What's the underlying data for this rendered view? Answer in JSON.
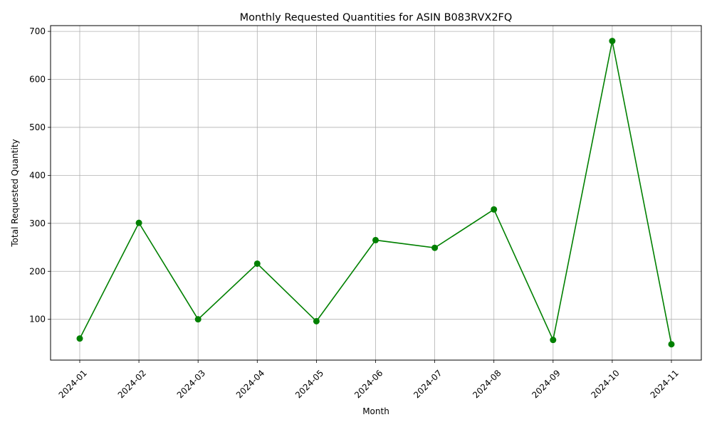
{
  "chart_data": {
    "type": "line",
    "title": "Monthly Requested Quantities for ASIN B083RVX2FQ",
    "xlabel": "Month",
    "ylabel": "Total Requested Quantity",
    "categories": [
      "2024-01",
      "2024-02",
      "2024-03",
      "2024-04",
      "2024-05",
      "2024-06",
      "2024-07",
      "2024-08",
      "2024-09",
      "2024-10",
      "2024-11"
    ],
    "series": [
      {
        "values": [
          60,
          301,
          100,
          216,
          96,
          265,
          249,
          329,
          57,
          680,
          48
        ]
      }
    ],
    "yticks": [
      100,
      200,
      300,
      400,
      500,
      600,
      700
    ],
    "ylim": [
      15,
      712
    ],
    "grid": true,
    "line_color": "#008000",
    "marker_color": "#008000"
  }
}
